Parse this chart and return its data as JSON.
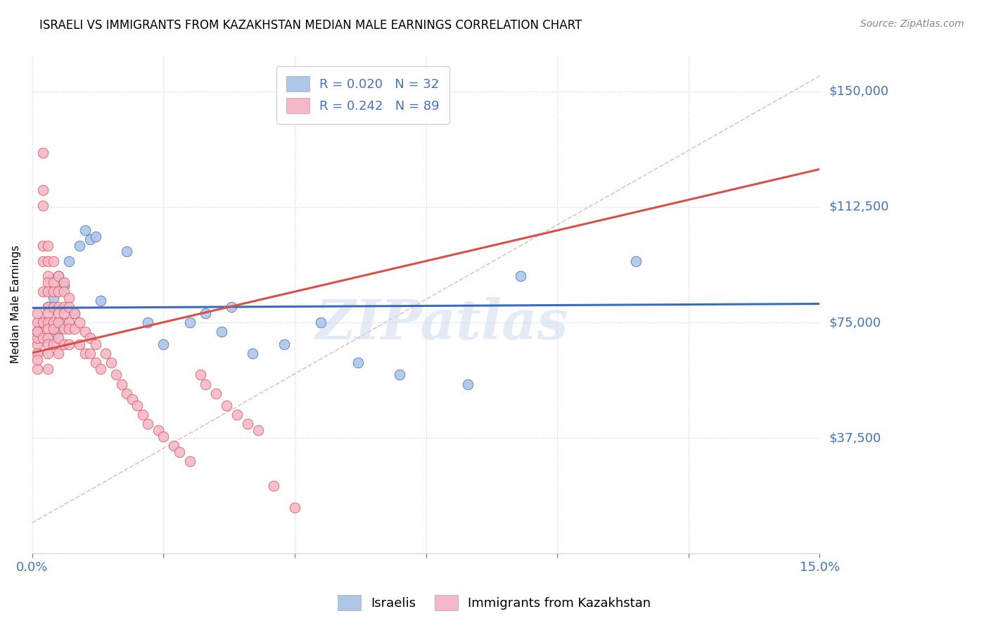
{
  "title": "ISRAELI VS IMMIGRANTS FROM KAZAKHSTAN MEDIAN MALE EARNINGS CORRELATION CHART",
  "source": "Source: ZipAtlas.com",
  "ylabel": "Median Male Earnings",
  "yticks": [
    0,
    37500,
    75000,
    112500,
    150000
  ],
  "ytick_labels": [
    "",
    "$37,500",
    "$75,000",
    "$112,500",
    "$150,000"
  ],
  "xlim": [
    0.0,
    0.15
  ],
  "ylim": [
    0,
    162000
  ],
  "r_israeli": 0.02,
  "n_israeli": 32,
  "r_kazakh": 0.242,
  "n_kazakh": 89,
  "color_israeli": "#aec6e8",
  "color_kazakh": "#f4b8c8",
  "color_trendline_israeli": "#3a6bbf",
  "color_trendline_kazakh": "#d9504a",
  "color_diagonal": "#e8b8c0",
  "watermark": "ZIPatlas",
  "israeli_x": [
    0.001,
    0.002,
    0.003,
    0.003,
    0.004,
    0.004,
    0.005,
    0.005,
    0.006,
    0.006,
    0.007,
    0.008,
    0.009,
    0.01,
    0.011,
    0.012,
    0.013,
    0.018,
    0.022,
    0.025,
    0.03,
    0.033,
    0.036,
    0.038,
    0.042,
    0.048,
    0.055,
    0.062,
    0.07,
    0.083,
    0.093,
    0.115
  ],
  "israeli_y": [
    72000,
    75000,
    80000,
    75000,
    70000,
    83000,
    90000,
    73000,
    75000,
    87000,
    95000,
    78000,
    100000,
    105000,
    102000,
    103000,
    82000,
    98000,
    75000,
    68000,
    75000,
    78000,
    72000,
    80000,
    65000,
    68000,
    75000,
    62000,
    58000,
    55000,
    90000,
    95000
  ],
  "kazakh_x": [
    0.001,
    0.001,
    0.001,
    0.001,
    0.001,
    0.001,
    0.001,
    0.001,
    0.001,
    0.002,
    0.002,
    0.002,
    0.002,
    0.002,
    0.002,
    0.002,
    0.002,
    0.003,
    0.003,
    0.003,
    0.003,
    0.003,
    0.003,
    0.003,
    0.003,
    0.003,
    0.003,
    0.003,
    0.003,
    0.003,
    0.004,
    0.004,
    0.004,
    0.004,
    0.004,
    0.004,
    0.004,
    0.005,
    0.005,
    0.005,
    0.005,
    0.005,
    0.005,
    0.005,
    0.006,
    0.006,
    0.006,
    0.006,
    0.006,
    0.006,
    0.007,
    0.007,
    0.007,
    0.007,
    0.007,
    0.008,
    0.008,
    0.009,
    0.009,
    0.01,
    0.01,
    0.011,
    0.011,
    0.012,
    0.012,
    0.013,
    0.014,
    0.015,
    0.016,
    0.017,
    0.018,
    0.019,
    0.02,
    0.021,
    0.022,
    0.024,
    0.025,
    0.027,
    0.028,
    0.03,
    0.032,
    0.033,
    0.035,
    0.037,
    0.039,
    0.041,
    0.043,
    0.046,
    0.05
  ],
  "kazakh_y": [
    75000,
    68000,
    72000,
    78000,
    65000,
    60000,
    70000,
    72000,
    63000,
    130000,
    118000,
    113000,
    100000,
    95000,
    85000,
    75000,
    70000,
    100000,
    95000,
    90000,
    88000,
    85000,
    80000,
    78000,
    75000,
    73000,
    70000,
    68000,
    65000,
    60000,
    95000,
    88000,
    85000,
    80000,
    75000,
    73000,
    68000,
    90000,
    85000,
    80000,
    78000,
    75000,
    70000,
    65000,
    88000,
    85000,
    80000,
    78000,
    73000,
    68000,
    83000,
    80000,
    75000,
    73000,
    68000,
    78000,
    73000,
    75000,
    68000,
    72000,
    65000,
    70000,
    65000,
    68000,
    62000,
    60000,
    65000,
    62000,
    58000,
    55000,
    52000,
    50000,
    48000,
    45000,
    42000,
    40000,
    38000,
    35000,
    33000,
    30000,
    58000,
    55000,
    52000,
    48000,
    45000,
    42000,
    40000,
    22000,
    15000
  ]
}
